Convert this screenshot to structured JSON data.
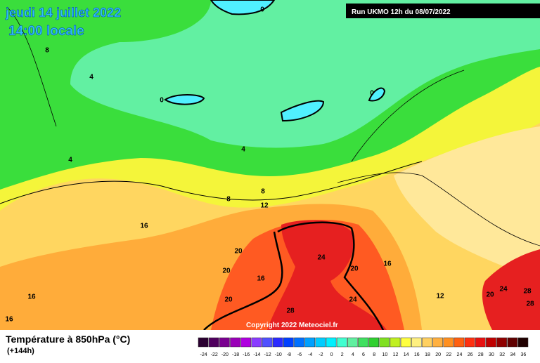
{
  "header": {
    "title": "jeudi 14 juillet 2022",
    "subtitle": "14:00 locale",
    "run": "Run UKMO 12h du 08/07/2022",
    "copyright": "Copyright 2022 Meteociel.fr"
  },
  "legend": {
    "title": "Température à 850hPa (°C)",
    "subtitle": "(+144h)",
    "scale": [
      -24,
      -22,
      -20,
      -18,
      -16,
      -14,
      -12,
      -10,
      -8,
      -6,
      -4,
      -2,
      0,
      2,
      4,
      6,
      8,
      10,
      12,
      14,
      16,
      18,
      20,
      22,
      24,
      26,
      28,
      30,
      32,
      34,
      36
    ],
    "colors": [
      "#2a0030",
      "#50005e",
      "#7a0090",
      "#9a00b8",
      "#b000e0",
      "#8a3cff",
      "#5050ff",
      "#2a2aff",
      "#0040ff",
      "#0070ff",
      "#00a0ff",
      "#00ccff",
      "#00f0ff",
      "#40ffd0",
      "#60f0a0",
      "#40e060",
      "#30d030",
      "#80e020",
      "#c0f020",
      "#ffff40",
      "#fff080",
      "#ffd060",
      "#ffb040",
      "#ff9020",
      "#ff6010",
      "#ff3010",
      "#e81010",
      "#c00000",
      "#900000",
      "#600000",
      "#200000"
    ]
  },
  "contour_labels": [
    0,
    8,
    4,
    0,
    0,
    4,
    4,
    8,
    8,
    12,
    16,
    20,
    24,
    20,
    20,
    16,
    16,
    16,
    20,
    24,
    28,
    12,
    20,
    24,
    28,
    28,
    16
  ]
}
